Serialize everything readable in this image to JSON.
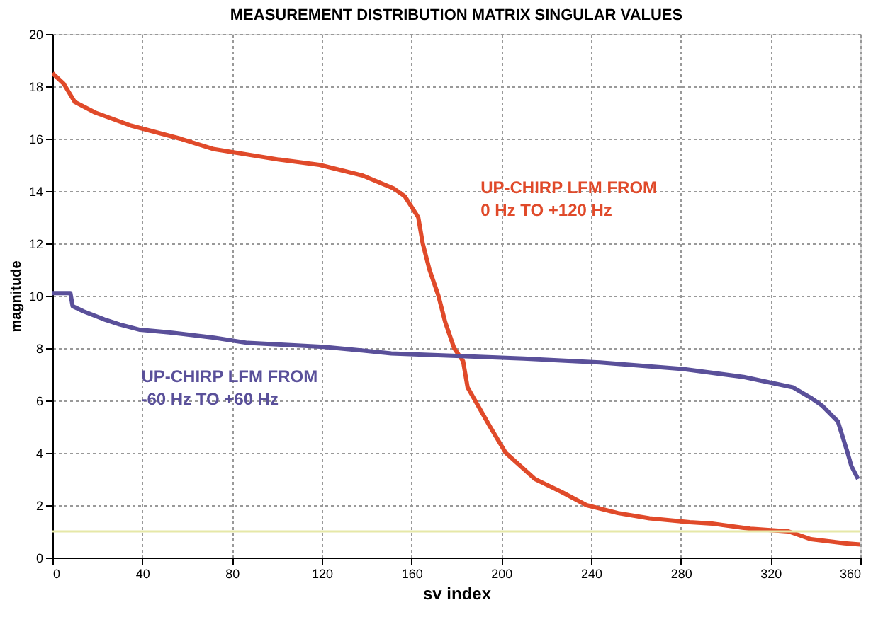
{
  "chart_data": {
    "type": "line",
    "title": "MEASUREMENT DISTRIBUTION MATRIX SINGULAR VALUES",
    "xlabel": "sv index",
    "ylabel": "magnitude",
    "xlim": [
      0,
      360
    ],
    "ylim": [
      0,
      20
    ],
    "xticks": [
      0,
      40,
      80,
      120,
      160,
      200,
      240,
      280,
      320,
      360
    ],
    "yticks": [
      0,
      2,
      4,
      6,
      8,
      10,
      12,
      14,
      16,
      18,
      20
    ],
    "grid": true,
    "line_style": "solid",
    "ref_lines": [
      {
        "axis": "y",
        "value": 1,
        "color": "#e6e8a8"
      }
    ],
    "series": [
      {
        "name": "UP-CHIRP LFM FROM\n0 Hz TO +120 Hz",
        "color": "#e04a2a",
        "x": [
          0,
          5,
          10,
          19,
          35,
          57,
          72,
          101,
          119,
          138,
          152,
          157,
          163,
          165,
          168,
          172,
          175,
          179,
          183,
          185,
          195,
          202,
          215,
          227,
          238,
          252,
          266,
          284,
          294,
          311,
          328,
          338,
          353,
          360
        ],
        "values": [
          18.5,
          18.1,
          17.4,
          17.0,
          16.5,
          16.0,
          15.6,
          15.2,
          15.0,
          14.6,
          14.1,
          13.8,
          13.0,
          12.0,
          11.0,
          10.0,
          9.0,
          8.0,
          7.5,
          6.5,
          5.0,
          4.0,
          3.0,
          2.5,
          2.0,
          1.7,
          1.5,
          1.35,
          1.3,
          1.1,
          1.0,
          0.7,
          0.55,
          0.5
        ]
      },
      {
        "name": "UP-CHIRP LFM FROM\n-60 Hz TO +60 Hz",
        "color": "#5a509a",
        "x": [
          0,
          8,
          9,
          14,
          23,
          30,
          39,
          52,
          72,
          87,
          121,
          151,
          180,
          210,
          244,
          281,
          308,
          330,
          338,
          343,
          350,
          354,
          356,
          359
        ],
        "values": [
          10.1,
          10.1,
          9.6,
          9.4,
          9.1,
          8.9,
          8.7,
          8.6,
          8.4,
          8.2,
          8.05,
          7.8,
          7.7,
          7.6,
          7.45,
          7.2,
          6.9,
          6.5,
          6.1,
          5.8,
          5.2,
          4.1,
          3.5,
          3.0
        ]
      }
    ]
  }
}
